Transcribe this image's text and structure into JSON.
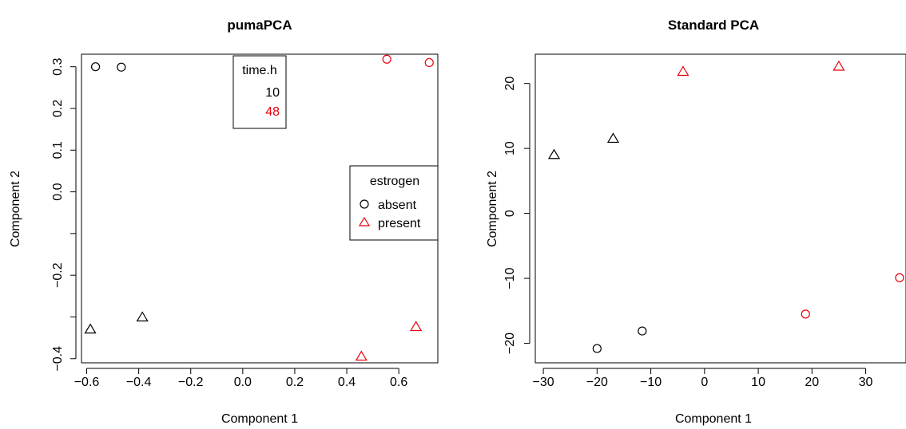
{
  "chart_data": [
    {
      "type": "scatter",
      "title": "pumaPCA",
      "xlabel": "Component 1",
      "ylabel": "Component 2",
      "xlim": [
        -0.62,
        0.75
      ],
      "ylim": [
        -0.41,
        0.33
      ],
      "xticks": [
        -0.6,
        -0.4,
        -0.2,
        0.0,
        0.2,
        0.4,
        0.6
      ],
      "xtick_labels": [
        "−0.6",
        "−0.4",
        "−0.2",
        "0.0",
        "0.2",
        "0.4",
        "0.6"
      ],
      "yticks": [
        -0.4,
        -0.3,
        -0.2,
        -0.1,
        0.0,
        0.1,
        0.2,
        0.3
      ],
      "ytick_labels": [
        "−0.4",
        "",
        "−0.2",
        "",
        "0.0",
        "0.1",
        "0.2",
        "0.3"
      ],
      "points": [
        {
          "x": -0.566,
          "y": 0.3,
          "shape": "circle",
          "color": "#000000"
        },
        {
          "x": -0.467,
          "y": 0.299,
          "shape": "circle",
          "color": "#000000"
        },
        {
          "x": -0.586,
          "y": -0.33,
          "shape": "triangle",
          "color": "#000000"
        },
        {
          "x": -0.386,
          "y": -0.301,
          "shape": "triangle",
          "color": "#000000"
        },
        {
          "x": 0.554,
          "y": 0.318,
          "shape": "circle",
          "color": "#e8000b"
        },
        {
          "x": 0.717,
          "y": 0.31,
          "shape": "circle",
          "color": "#e8000b"
        },
        {
          "x": 0.456,
          "y": -0.395,
          "shape": "triangle",
          "color": "#e8000b"
        },
        {
          "x": 0.666,
          "y": -0.324,
          "shape": "triangle",
          "color": "#e8000b"
        }
      ],
      "legend_time": {
        "title": "time.h",
        "entries": [
          {
            "label": "10",
            "color": "#000000"
          },
          {
            "label": "48",
            "color": "#e8000b"
          }
        ],
        "placement": "top-center"
      },
      "legend_estrogen": {
        "title": "estrogen",
        "entries": [
          {
            "label": "absent",
            "shape": "circle"
          },
          {
            "label": "present",
            "shape": "triangle"
          }
        ],
        "placement": "right"
      }
    },
    {
      "type": "scatter",
      "title": "Standard PCA",
      "xlabel": "Component 1",
      "ylabel": "Component 2",
      "xlim": [
        -31.5,
        37.5
      ],
      "ylim": [
        -23.0,
        24.5
      ],
      "xticks": [
        -30,
        -20,
        -10,
        0,
        10,
        20,
        30
      ],
      "xtick_labels": [
        "−30",
        "−20",
        "−10",
        "0",
        "10",
        "20",
        "30"
      ],
      "yticks": [
        -20,
        -10,
        0,
        10,
        20
      ],
      "ytick_labels": [
        "−20",
        "−10",
        "0",
        "10",
        "20"
      ],
      "points": [
        {
          "x": -28.0,
          "y": 9.0,
          "shape": "triangle",
          "color": "#000000"
        },
        {
          "x": -17.0,
          "y": 11.5,
          "shape": "triangle",
          "color": "#000000"
        },
        {
          "x": -4.0,
          "y": 21.8,
          "shape": "triangle",
          "color": "#e8000b"
        },
        {
          "x": 25.0,
          "y": 22.6,
          "shape": "triangle",
          "color": "#e8000b"
        },
        {
          "x": -20.0,
          "y": -20.8,
          "shape": "circle",
          "color": "#000000"
        },
        {
          "x": -11.6,
          "y": -18.1,
          "shape": "circle",
          "color": "#000000"
        },
        {
          "x": 18.8,
          "y": -15.5,
          "shape": "circle",
          "color": "#e8000b"
        },
        {
          "x": 36.3,
          "y": -9.9,
          "shape": "circle",
          "color": "#e8000b"
        }
      ]
    }
  ]
}
